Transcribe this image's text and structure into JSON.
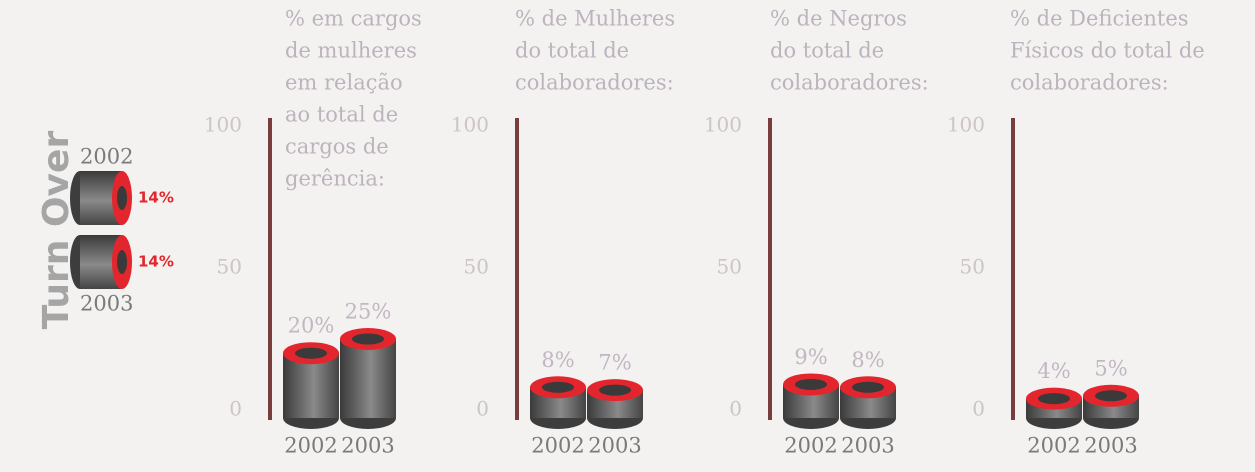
{
  "chart_data": [
    {
      "type": "ring",
      "title": "Turn Over",
      "categories": [
        "2002",
        "2003"
      ],
      "values": [
        14,
        14
      ],
      "value_labels": [
        "14%",
        "14%"
      ],
      "color": "#e3262d"
    },
    {
      "type": "bar",
      "title": [
        "% em cargos",
        "de mulheres",
        "em relação",
        "ao total de",
        "cargos de",
        "gerência:"
      ],
      "categories": [
        "2002",
        "2003"
      ],
      "values": [
        20,
        25
      ],
      "value_labels": [
        "20%",
        "25%"
      ],
      "ylim": [
        0,
        100
      ],
      "yticks": [
        0,
        50,
        100
      ],
      "color": "#e3262d"
    },
    {
      "type": "bar",
      "title": [
        "% de Mulheres",
        "do total de",
        "colaboradores:"
      ],
      "categories": [
        "2002",
        "2003"
      ],
      "values": [
        8,
        7
      ],
      "value_labels": [
        "8%",
        "7%"
      ],
      "ylim": [
        0,
        100
      ],
      "yticks": [
        0,
        50,
        100
      ],
      "color": "#e3262d"
    },
    {
      "type": "bar",
      "title": [
        "% de Negros",
        "do total de",
        "colaboradores:"
      ],
      "categories": [
        "2002",
        "2003"
      ],
      "values": [
        9,
        8
      ],
      "value_labels": [
        "9%",
        "8%"
      ],
      "ylim": [
        0,
        100
      ],
      "yticks": [
        0,
        50,
        100
      ],
      "color": "#e3262d"
    },
    {
      "type": "bar",
      "title": [
        "% de Deficientes",
        "Físicos do total de",
        "colaboradores:"
      ],
      "categories": [
        "2002",
        "2003"
      ],
      "values": [
        4,
        5
      ],
      "value_labels": [
        "4%",
        "5%"
      ],
      "ylim": [
        0,
        100
      ],
      "yticks": [
        0,
        50,
        100
      ],
      "color": "#e3262d"
    }
  ]
}
